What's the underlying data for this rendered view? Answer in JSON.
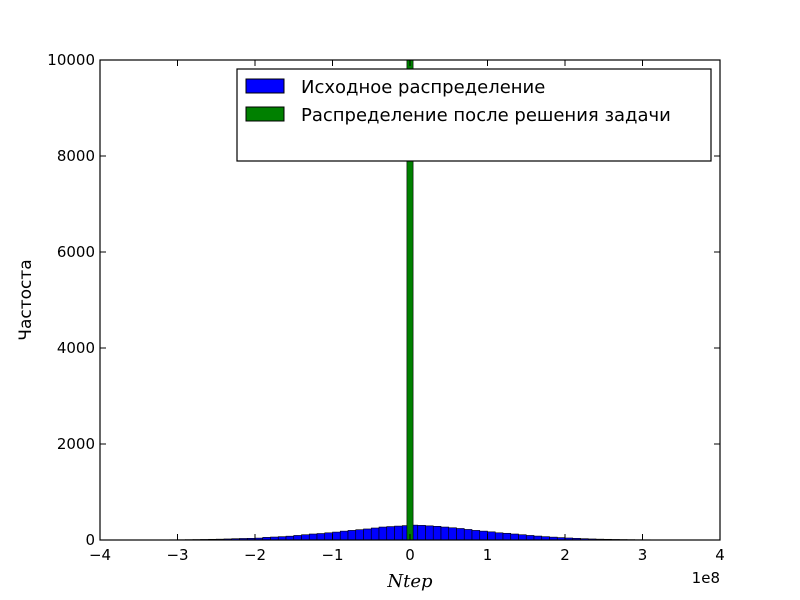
{
  "chart_data": {
    "type": "bar",
    "title": "",
    "xlabel": "Ntep",
    "ylabel": "Частоста",
    "x_offset_text": "1e8",
    "xlim": [
      -4,
      4
    ],
    "ylim": [
      0,
      10000
    ],
    "x_unit_multiplier": 100000000,
    "xticks": [
      -4,
      -3,
      -2,
      -1,
      0,
      1,
      2,
      3,
      4
    ],
    "xtick_labels": [
      "−4",
      "−3",
      "−2",
      "−1",
      "0",
      "1",
      "2",
      "3",
      "4"
    ],
    "yticks": [
      0,
      2000,
      4000,
      6000,
      8000,
      10000
    ],
    "ytick_labels": [
      "0",
      "2000",
      "4000",
      "6000",
      "8000",
      "10000"
    ],
    "grid": false,
    "legend_position": "top-right",
    "series": [
      {
        "name": "Исходное распределение",
        "color": "#0000ff",
        "bin_edges": [
          -3.7,
          -3.6,
          -3.5,
          -3.4,
          -3.3,
          -3.2,
          -3.1,
          -3.0,
          -2.9,
          -2.8,
          -2.7,
          -2.6,
          -2.5,
          -2.4,
          -2.3,
          -2.2,
          -2.1,
          -2.0,
          -1.9,
          -1.8,
          -1.7,
          -1.6,
          -1.5,
          -1.4,
          -1.3,
          -1.2,
          -1.1,
          -1.0,
          -0.9,
          -0.8,
          -0.7,
          -0.6,
          -0.5,
          -0.4,
          -0.3,
          -0.2,
          -0.1,
          0.0,
          0.1,
          0.2,
          0.3,
          0.4,
          0.5,
          0.6,
          0.7,
          0.8,
          0.9,
          1.0,
          1.1,
          1.2,
          1.3,
          1.4,
          1.5,
          1.6,
          1.7,
          1.8,
          1.9,
          2.0,
          2.1,
          2.2,
          2.3,
          2.4,
          2.5,
          2.6,
          2.7,
          2.8,
          2.9,
          3.0,
          3.1,
          3.2,
          3.3,
          3.4,
          3.5,
          3.6,
          3.7
        ],
        "counts": [
          2,
          3,
          1,
          2,
          4,
          3,
          5,
          6,
          8,
          10,
          12,
          15,
          18,
          22,
          28,
          32,
          35,
          40,
          55,
          62,
          70,
          80,
          95,
          110,
          125,
          135,
          150,
          165,
          185,
          200,
          215,
          230,
          250,
          270,
          280,
          290,
          300,
          310,
          305,
          295,
          285,
          270,
          255,
          240,
          220,
          200,
          185,
          170,
          150,
          140,
          125,
          110,
          95,
          82,
          70,
          60,
          50,
          42,
          35,
          28,
          22,
          18,
          15,
          12,
          10,
          8,
          6,
          5,
          4,
          3,
          2,
          2,
          1,
          2
        ]
      },
      {
        "name": "Распределение после решения задачи",
        "color": "#008000",
        "bin_edges": [
          -0.04,
          0.04
        ],
        "counts": [
          10000
        ]
      }
    ]
  }
}
